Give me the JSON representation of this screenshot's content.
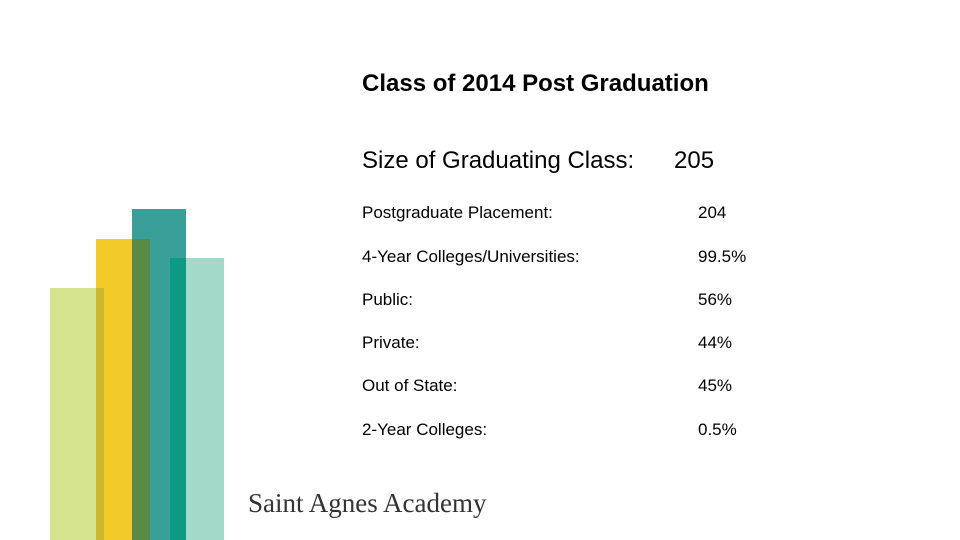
{
  "slide": {
    "title": "Class of 2014 Post Graduation",
    "subtitle": {
      "label": "Size of Graduating Class:",
      "value": "205"
    },
    "rows": [
      [
        "Postgraduate Placement:",
        "204"
      ],
      [
        "4-Year Colleges/Universities:",
        "99.5%"
      ],
      [
        "Public:",
        "56%"
      ],
      [
        "Private:",
        "44%"
      ],
      [
        "Out of State:",
        "45%"
      ],
      [
        "2-Year Colleges:",
        "0.5%"
      ]
    ],
    "footer": "Saint Agnes Academy"
  }
}
